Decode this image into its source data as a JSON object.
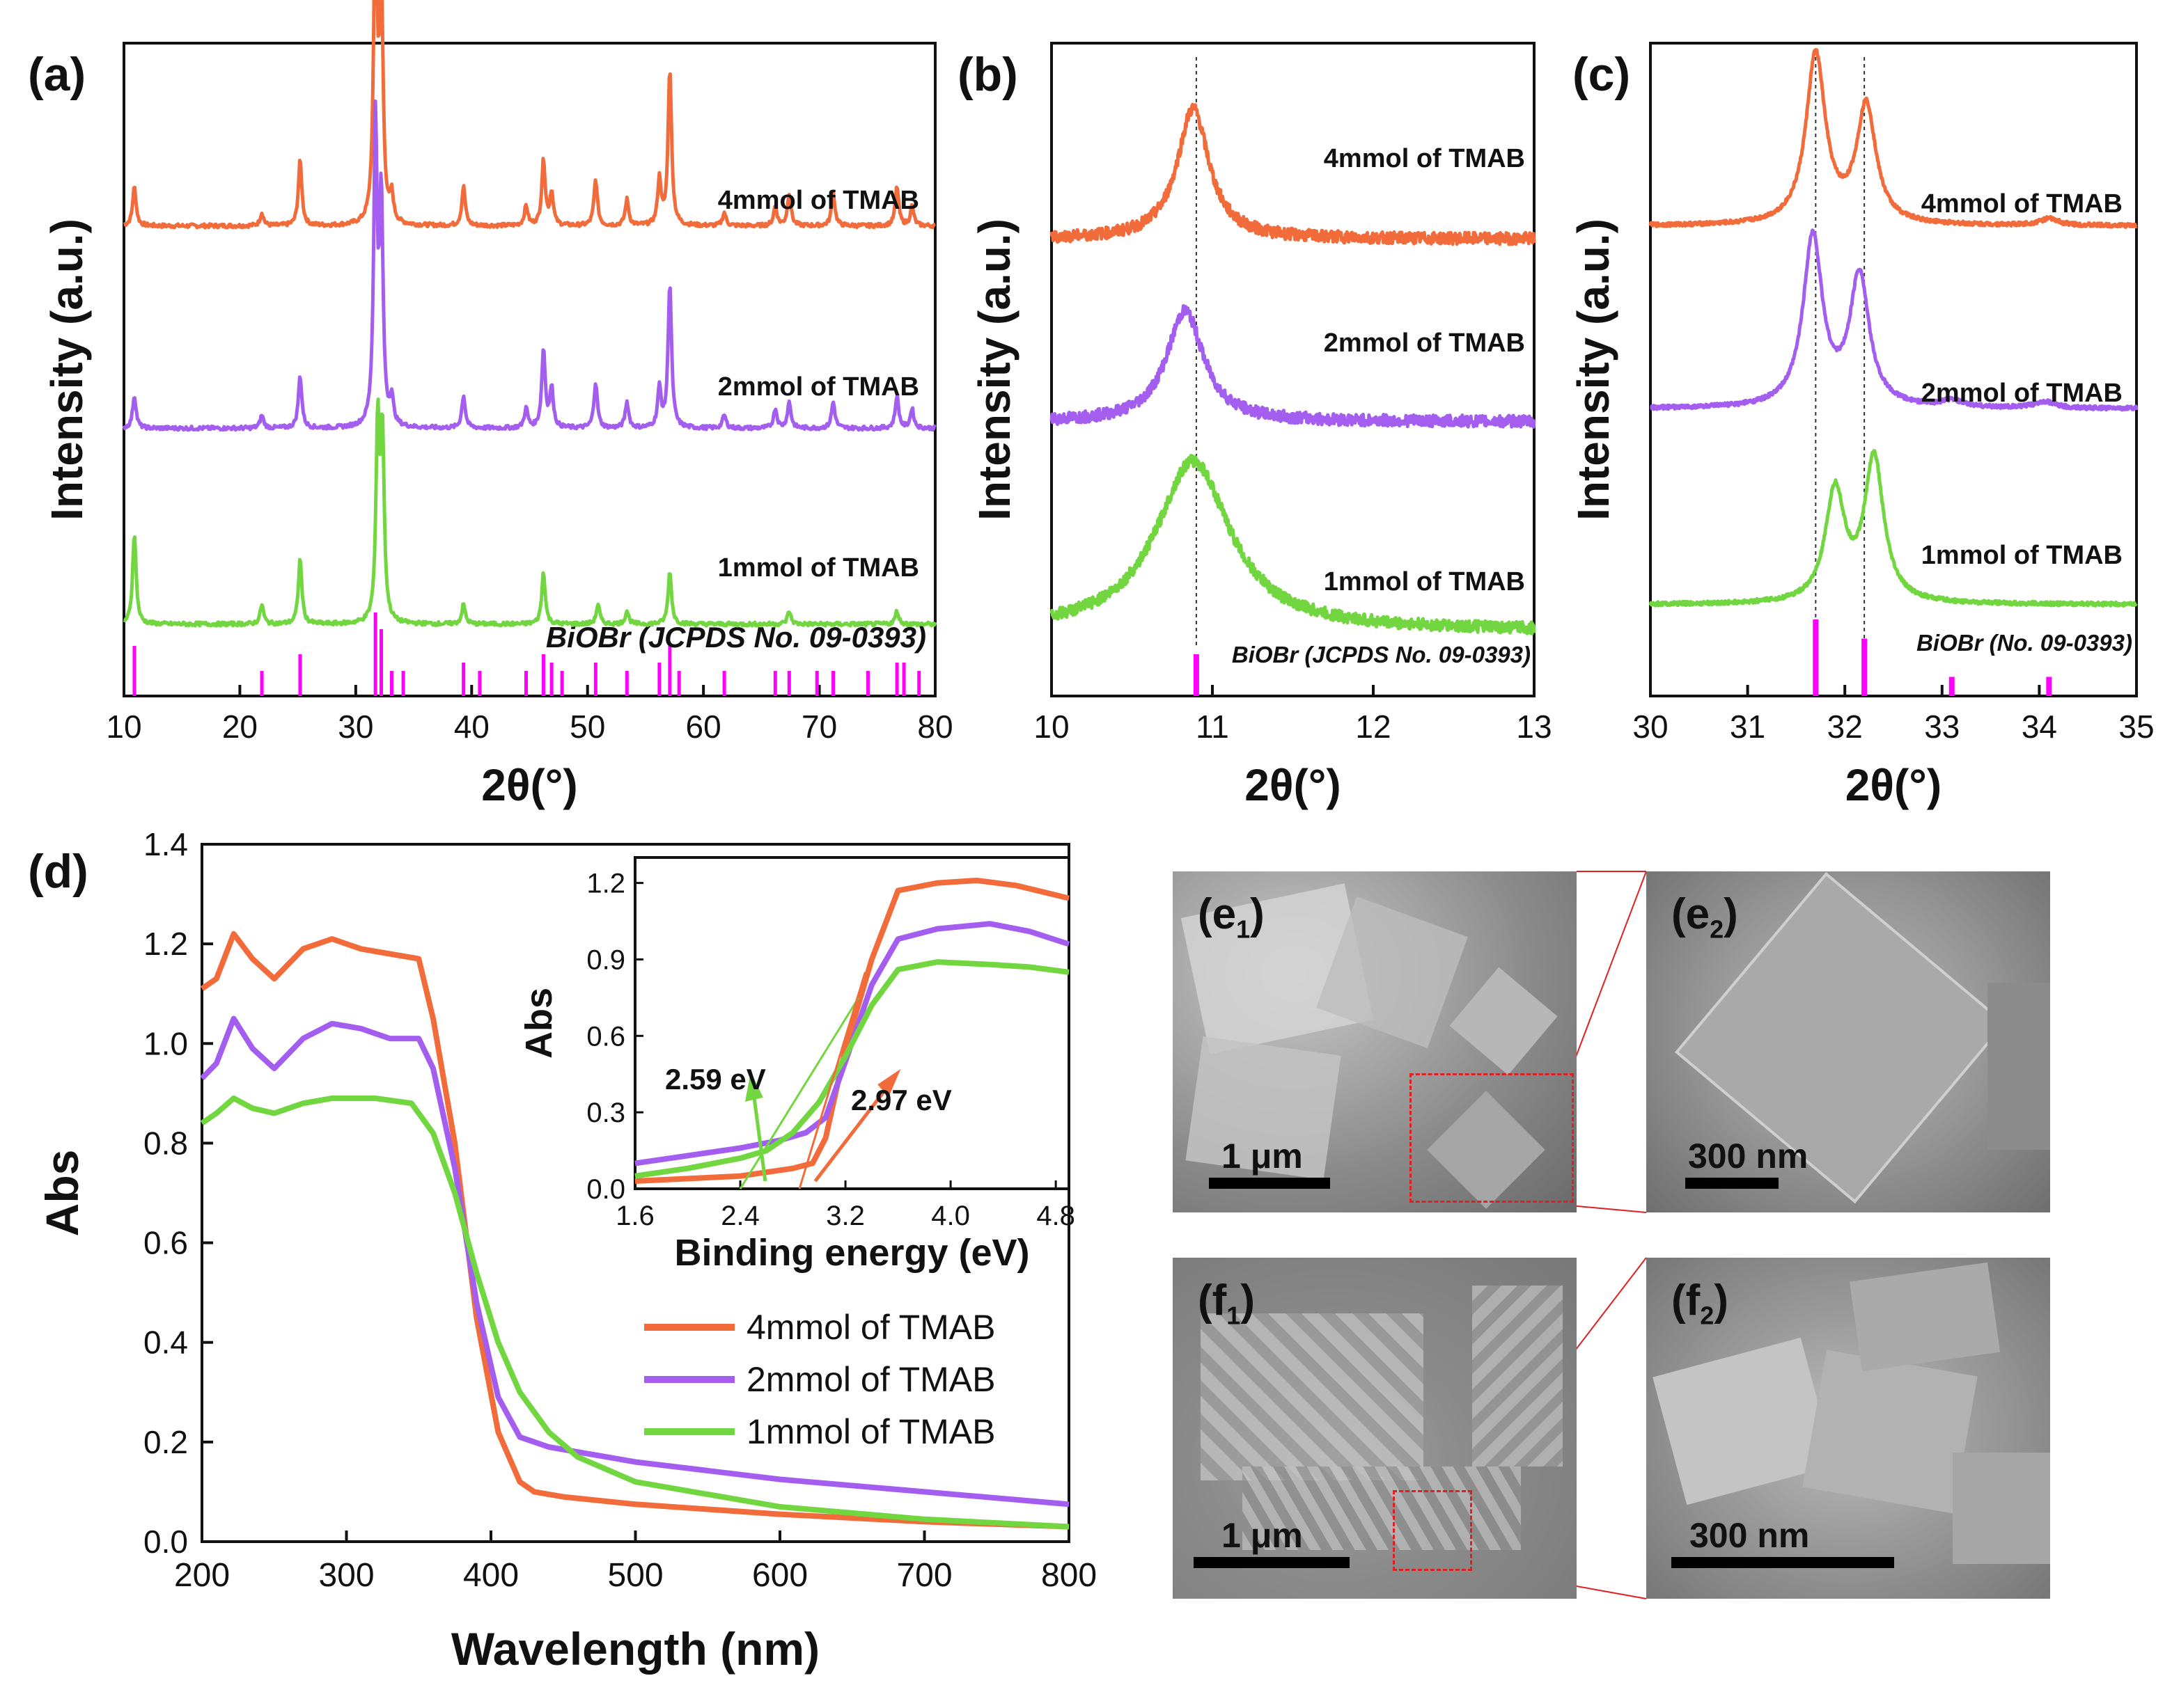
{
  "chart_data": [
    {
      "panel": "(a)",
      "type": "line",
      "xlabel": "2θ(°)",
      "ylabel": "Intensity (a.u.)",
      "xlim": [
        10,
        80
      ],
      "xticks": [
        "10",
        "20",
        "30",
        "40",
        "50",
        "60",
        "70",
        "80"
      ],
      "series": [
        {
          "name": "4mmol of TMAB",
          "color": "#f26b3a",
          "offset": 0.72,
          "peaks": [
            [
              10.9,
              0.06
            ],
            [
              21.9,
              0.02
            ],
            [
              25.2,
              0.1
            ],
            [
              31.7,
              0.48
            ],
            [
              32.2,
              0.36
            ],
            [
              33.1,
              0.04
            ],
            [
              39.3,
              0.06
            ],
            [
              44.7,
              0.03
            ],
            [
              46.2,
              0.1
            ],
            [
              46.9,
              0.05
            ],
            [
              50.7,
              0.07
            ],
            [
              53.4,
              0.04
            ],
            [
              56.2,
              0.07
            ],
            [
              57.1,
              0.24
            ],
            [
              61.8,
              0.02
            ],
            [
              66.2,
              0.03
            ],
            [
              67.4,
              0.05
            ],
            [
              71.2,
              0.05
            ],
            [
              76.7,
              0.06
            ],
            [
              78.0,
              0.03
            ]
          ]
        },
        {
          "name": "2mmol of TMAB",
          "color": "#a35ef0",
          "offset": 0.41,
          "peaks": [
            [
              10.9,
              0.05
            ],
            [
              21.9,
              0.02
            ],
            [
              25.2,
              0.08
            ],
            [
              31.7,
              0.46
            ],
            [
              32.2,
              0.34
            ],
            [
              33.1,
              0.04
            ],
            [
              39.3,
              0.05
            ],
            [
              44.7,
              0.03
            ],
            [
              46.2,
              0.12
            ],
            [
              46.9,
              0.06
            ],
            [
              50.7,
              0.07
            ],
            [
              53.4,
              0.04
            ],
            [
              56.2,
              0.06
            ],
            [
              57.1,
              0.22
            ],
            [
              61.8,
              0.02
            ],
            [
              66.2,
              0.03
            ],
            [
              67.4,
              0.04
            ],
            [
              71.2,
              0.04
            ],
            [
              76.7,
              0.05
            ],
            [
              78.0,
              0.03
            ]
          ]
        },
        {
          "name": "1mmol of TMAB",
          "color": "#72d640",
          "offset": 0.11,
          "peaks": [
            [
              10.9,
              0.14
            ],
            [
              21.9,
              0.03
            ],
            [
              25.2,
              0.1
            ],
            [
              31.9,
              0.3
            ],
            [
              32.3,
              0.28
            ],
            [
              39.3,
              0.03
            ],
            [
              46.2,
              0.08
            ],
            [
              50.9,
              0.03
            ],
            [
              53.4,
              0.02
            ],
            [
              57.1,
              0.08
            ],
            [
              67.4,
              0.02
            ],
            [
              76.7,
              0.02
            ]
          ]
        }
      ],
      "labels": [
        "4mmol of TMAB",
        "2mmol of TMAB",
        "1mmol of TMAB"
      ],
      "reference": {
        "label": "BiOBr (JCPDS No. 09-0393)",
        "color": "#ff00ff",
        "positions": [
          10.9,
          21.9,
          25.2,
          31.7,
          32.2,
          33.1,
          34.1,
          39.3,
          40.7,
          44.7,
          46.2,
          46.9,
          47.8,
          50.7,
          53.4,
          56.2,
          57.1,
          57.9,
          61.8,
          66.2,
          67.4,
          69.8,
          71.2,
          74.2,
          76.7,
          77.3,
          78.6
        ],
        "heights": [
          0.6,
          0.3,
          0.5,
          1.0,
          0.8,
          0.3,
          0.3,
          0.4,
          0.3,
          0.3,
          0.5,
          0.4,
          0.3,
          0.4,
          0.3,
          0.4,
          0.6,
          0.3,
          0.3,
          0.3,
          0.3,
          0.3,
          0.3,
          0.3,
          0.4,
          0.4,
          0.3
        ]
      }
    },
    {
      "panel": "(b)",
      "type": "line",
      "xlabel": "2θ(°)",
      "ylabel": "Intensity (a.u.)",
      "xlim": [
        10,
        13
      ],
      "xticks": [
        "10",
        "11",
        "12",
        "13"
      ],
      "dashed_at": 10.9,
      "series": [
        {
          "name": "4mmol of TMAB",
          "color": "#f26b3a",
          "offset": 0.7,
          "peaks": [
            [
              10.88,
              0.2
            ]
          ],
          "width": 0.12
        },
        {
          "name": "2mmol of TMAB",
          "color": "#a35ef0",
          "offset": 0.42,
          "peaks": [
            [
              10.83,
              0.17
            ]
          ],
          "width": 0.14
        },
        {
          "name": "1mmol of TMAB",
          "color": "#72d640",
          "offset": 0.1,
          "peaks": [
            [
              10.88,
              0.26
            ]
          ],
          "width": 0.28
        }
      ],
      "labels": [
        "4mmol of TMAB",
        "2mmol of TMAB",
        "1mmol of TMAB"
      ],
      "reference": {
        "label": "BiOBr (JCPDS No. 09-0393)",
        "color": "#ff00ff",
        "positions": [
          10.9
        ],
        "heights": [
          1.0
        ]
      }
    },
    {
      "panel": "(c)",
      "type": "line",
      "xlabel": "2θ(°)",
      "ylabel": "Intensity (a.u.)",
      "xlim": [
        30,
        35
      ],
      "xticks": [
        "30",
        "31",
        "32",
        "33",
        "34",
        "35"
      ],
      "dashed_at": [
        31.7,
        32.2
      ],
      "series": [
        {
          "name": "4mmol of TMAB",
          "color": "#f26b3a",
          "offset": 0.72,
          "peaks": [
            [
              31.7,
              0.26
            ],
            [
              32.22,
              0.18
            ],
            [
              34.1,
              0.01
            ]
          ]
        },
        {
          "name": "2mmol of TMAB",
          "color": "#a35ef0",
          "offset": 0.44,
          "peaks": [
            [
              31.67,
              0.26
            ],
            [
              32.15,
              0.2
            ],
            [
              33.1,
              0.01
            ],
            [
              34.05,
              0.01
            ]
          ]
        },
        {
          "name": "1mmol of TMAB",
          "color": "#72d640",
          "offset": 0.14,
          "peaks": [
            [
              31.9,
              0.17
            ],
            [
              32.3,
              0.22
            ]
          ]
        }
      ],
      "labels": [
        "4mmol of TMAB",
        "2mmol of TMAB",
        "1mmol of TMAB"
      ],
      "reference": {
        "label": "BiOBr (No. 09-0393)",
        "color": "#ff00ff",
        "positions": [
          31.7,
          32.2,
          33.1,
          34.1
        ],
        "heights": [
          1.0,
          0.75,
          0.25,
          0.25
        ]
      }
    },
    {
      "panel": "(d)",
      "type": "line",
      "xlabel": "Wavelength (nm)",
      "ylabel": "Abs",
      "xlim": [
        200,
        800
      ],
      "ylim": [
        0,
        1.4
      ],
      "xticks": [
        "200",
        "300",
        "400",
        "500",
        "600",
        "700",
        "800"
      ],
      "yticks": [
        "0.0",
        "0.2",
        "0.4",
        "0.6",
        "0.8",
        "1.0",
        "1.2",
        "1.4"
      ],
      "series": [
        {
          "name": "4mmol of TMAB",
          "color": "#f26b3a",
          "x": [
            200,
            210,
            222,
            235,
            250,
            270,
            290,
            310,
            330,
            350,
            360,
            375,
            390,
            405,
            420,
            430,
            450,
            500,
            600,
            700,
            800
          ],
          "y": [
            1.11,
            1.13,
            1.22,
            1.17,
            1.13,
            1.19,
            1.21,
            1.19,
            1.18,
            1.17,
            1.05,
            0.8,
            0.45,
            0.22,
            0.12,
            0.1,
            0.09,
            0.075,
            0.055,
            0.04,
            0.03
          ]
        },
        {
          "name": "2mmol of TMAB",
          "color": "#a35ef0",
          "x": [
            200,
            210,
            222,
            235,
            250,
            270,
            290,
            310,
            330,
            350,
            360,
            375,
            390,
            405,
            420,
            440,
            500,
            600,
            700,
            800
          ],
          "y": [
            0.93,
            0.96,
            1.05,
            0.99,
            0.95,
            1.01,
            1.04,
            1.03,
            1.01,
            1.01,
            0.95,
            0.75,
            0.48,
            0.29,
            0.21,
            0.19,
            0.16,
            0.125,
            0.1,
            0.075
          ]
        },
        {
          "name": "1mmol of TMAB",
          "color": "#72d640",
          "x": [
            200,
            210,
            222,
            235,
            250,
            270,
            290,
            320,
            345,
            360,
            375,
            390,
            405,
            420,
            440,
            460,
            500,
            600,
            700,
            800
          ],
          "y": [
            0.84,
            0.86,
            0.89,
            0.87,
            0.86,
            0.88,
            0.89,
            0.89,
            0.88,
            0.82,
            0.7,
            0.54,
            0.4,
            0.3,
            0.22,
            0.17,
            0.12,
            0.07,
            0.045,
            0.03
          ]
        }
      ],
      "legend": [
        "4mmol of TMAB",
        "2mmol of TMAB",
        "1mmol of TMAB"
      ],
      "inset": {
        "xlabel": "Binding energy (eV)",
        "ylabel": "Abs",
        "xlim": [
          1.6,
          4.9
        ],
        "ylim": [
          0,
          1.3
        ],
        "xticks": [
          "1.6",
          "2.4",
          "3.2",
          "4.0",
          "4.8"
        ],
        "yticks": [
          "0.0",
          "0.3",
          "0.6",
          "0.9",
          "1.2"
        ],
        "series": [
          {
            "name": "4mmol of TMAB",
            "color": "#f26b3a",
            "x": [
              1.6,
              2.0,
              2.4,
              2.8,
              2.95,
              3.05,
              3.2,
              3.4,
              3.6,
              3.9,
              4.2,
              4.5,
              4.9
            ],
            "y": [
              0.03,
              0.04,
              0.05,
              0.08,
              0.1,
              0.2,
              0.55,
              0.9,
              1.17,
              1.2,
              1.21,
              1.19,
              1.14
            ]
          },
          {
            "name": "2mmol of TMAB",
            "color": "#a35ef0",
            "x": [
              1.6,
              2.0,
              2.4,
              2.7,
              2.9,
              3.05,
              3.2,
              3.4,
              3.6,
              3.9,
              4.3,
              4.6,
              4.9
            ],
            "y": [
              0.1,
              0.13,
              0.16,
              0.19,
              0.22,
              0.28,
              0.5,
              0.8,
              0.98,
              1.02,
              1.04,
              1.01,
              0.96
            ]
          },
          {
            "name": "1mmol of TMAB",
            "color": "#72d640",
            "x": [
              1.6,
              2.0,
              2.4,
              2.6,
              2.8,
              3.0,
              3.2,
              3.4,
              3.6,
              3.9,
              4.3,
              4.6,
              4.9
            ],
            "y": [
              0.05,
              0.08,
              0.12,
              0.15,
              0.22,
              0.34,
              0.52,
              0.72,
              0.86,
              0.89,
              0.88,
              0.87,
              0.85
            ]
          }
        ],
        "annotations": [
          {
            "text": "2.59 eV",
            "x": 2.59
          },
          {
            "text": "2.97 eV",
            "x": 2.97
          }
        ]
      }
    }
  ],
  "sem_panels": [
    {
      "label_main": "(e",
      "label_sub": "1",
      "label_end": ")",
      "scale": "1 μm"
    },
    {
      "label_main": "(e",
      "label_sub": "2",
      "label_end": ")",
      "scale": "300 nm"
    },
    {
      "label_main": "(f",
      "label_sub": "1",
      "label_end": ")",
      "scale": "1 μm"
    },
    {
      "label_main": "(f",
      "label_sub": "2",
      "label_end": ")",
      "scale": "300 nm"
    }
  ]
}
